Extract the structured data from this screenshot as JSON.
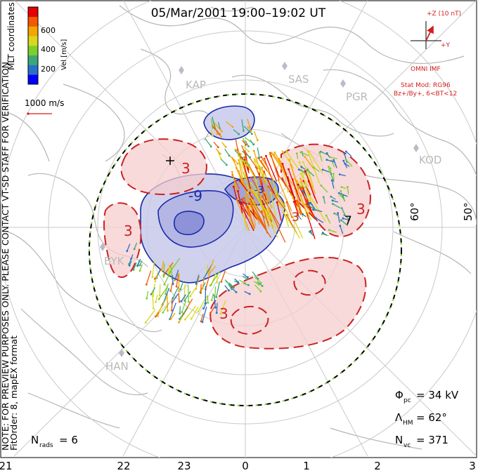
{
  "title": "05/Mar/2001 19:00–19:02 UT",
  "side_note": {
    "line1": "NOTE: FOR PREVIEW PURPOSES ONLY. PLEASE CONTACT VT-SD STAFF FOR VERIFICATION.",
    "line2": "FitOrder: 8, mapEX format",
    "mlt": "MLT coordinates"
  },
  "colorbar": {
    "label": "Vel [m/s]",
    "ticks": [
      "600",
      "400",
      "200"
    ],
    "colors": [
      "#0000ff",
      "#2a70c8",
      "#3aa87a",
      "#7ccf2c",
      "#d8d820",
      "#f5a500",
      "#f25a00",
      "#e60000"
    ]
  },
  "scale_vector": {
    "label": "1000 m/s"
  },
  "imf": {
    "magnitude": "+Z (10 nT)",
    "y_label": "+Y",
    "source": "OMNI IMF",
    "stat_mod": "Stat Mod: RG96",
    "condition": "Bz+/By+, 6<BT<12"
  },
  "stations": [
    {
      "code": "KAP"
    },
    {
      "code": "SAS"
    },
    {
      "code": "PGR"
    },
    {
      "code": "KOD"
    },
    {
      "code": "BYK"
    },
    {
      "code": "HAN"
    }
  ],
  "latitude_labels": [
    "60°",
    "50°"
  ],
  "contour_labels": [
    "-9",
    "3",
    "-3",
    "7"
  ],
  "mlt_labels": [
    "21",
    "22",
    "23",
    "0",
    "1",
    "2",
    "3"
  ],
  "stats": {
    "pcp_label": "Φ",
    "pcp_sub": "pc",
    "pcp_value": "=  34 kV",
    "hm_label": "Λ",
    "hm_sub": "HM",
    "hm_value": "=  62°",
    "nvc_label": "N",
    "nvc_sub": "vc",
    "nvc_value": "=  371",
    "nrads_label": "N",
    "nrads_sub": "rads",
    "nrads_value": "=  6"
  }
}
